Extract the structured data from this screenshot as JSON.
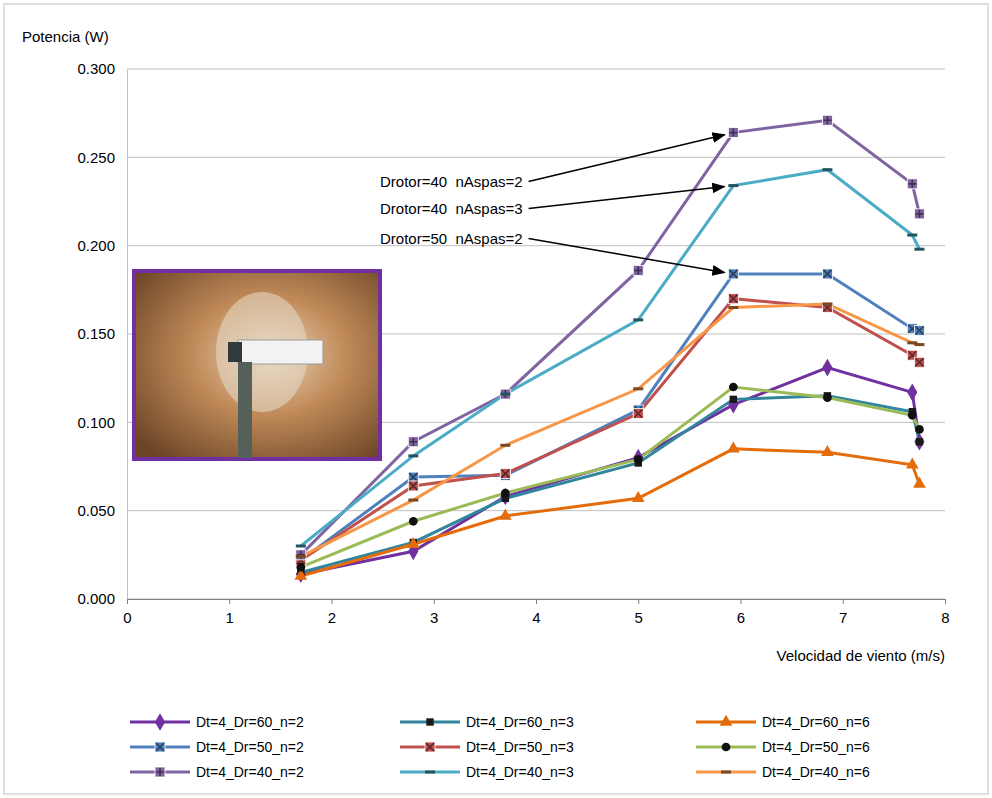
{
  "chart_data": {
    "type": "line",
    "x_label": "Velocidad de viento (m/s)",
    "y_label": "Potencia (W)",
    "x": [
      1.7,
      2.8,
      3.7,
      5.0,
      5.93,
      6.85,
      7.68,
      7.75
    ],
    "xlim": [
      0,
      8
    ],
    "ylim": [
      0,
      0.3
    ],
    "xticks": [
      0,
      1,
      2,
      3,
      4,
      5,
      6,
      7,
      8
    ],
    "yticks": [
      {
        "value": 0,
        "label": "0.000"
      },
      {
        "value": 0.05,
        "label": "0.050"
      },
      {
        "value": 0.1,
        "label": "0.100"
      },
      {
        "value": 0.15,
        "label": "0.150"
      },
      {
        "value": 0.2,
        "label": "0.200"
      },
      {
        "value": 0.25,
        "label": "0.250"
      },
      {
        "value": 0.3,
        "label": "0.300"
      }
    ],
    "grid": true,
    "legend": "bottom",
    "annotations": [
      "Drotor=40  nAspas=2",
      "Drotor=40  nAspas=3",
      "Drotor=50  nAspas=2"
    ],
    "series": [
      {
        "name": "Dt=4_Dr=60_n=2",
        "color": "#7030a0",
        "marker": "diamond",
        "values": [
          0.014,
          0.027,
          0.058,
          0.08,
          0.11,
          0.131,
          0.117,
          0.089
        ]
      },
      {
        "name": "Dt=4_Dr=60_n=3",
        "color": "#31859c",
        "marker": "square",
        "values": [
          0.015,
          0.032,
          0.057,
          0.077,
          0.113,
          0.115,
          0.106,
          0.089
        ]
      },
      {
        "name": "Dt=4_Dr=60_n=6",
        "color": "#e46c0a",
        "marker": "triangle",
        "values": [
          0.013,
          0.031,
          0.047,
          0.057,
          0.085,
          0.083,
          0.076,
          0.065
        ]
      },
      {
        "name": "Dt=4_Dr=50_n=2",
        "color": "#4f81bd",
        "marker": "square-x",
        "values": [
          0.022,
          0.069,
          0.07,
          0.107,
          0.184,
          0.184,
          0.153,
          0.152
        ]
      },
      {
        "name": "Dt=4_Dr=50_n=3",
        "color": "#c0504d",
        "marker": "square-x",
        "values": [
          0.022,
          0.064,
          0.071,
          0.105,
          0.17,
          0.165,
          0.138,
          0.134
        ]
      },
      {
        "name": "Dt=4_Dr=50_n=6",
        "color": "#9bbb59",
        "marker": "circle",
        "values": [
          0.018,
          0.044,
          0.06,
          0.079,
          0.12,
          0.114,
          0.104,
          0.096
        ]
      },
      {
        "name": "Dt=4_Dr=40_n=2",
        "color": "#8064a2",
        "marker": "square-plus",
        "values": [
          0.025,
          0.089,
          0.116,
          0.186,
          0.264,
          0.271,
          0.235,
          0.218
        ]
      },
      {
        "name": "Dt=4_Dr=40_n=3",
        "color": "#4bacc6",
        "marker": "dash",
        "values": [
          0.03,
          0.081,
          0.116,
          0.158,
          0.234,
          0.243,
          0.206,
          0.198
        ]
      },
      {
        "name": "Dt=4_Dr=40_n=6",
        "color": "#f79646",
        "marker": "dash",
        "values": [
          0.024,
          0.056,
          0.087,
          0.119,
          0.165,
          0.167,
          0.145,
          0.144
        ]
      }
    ]
  }
}
